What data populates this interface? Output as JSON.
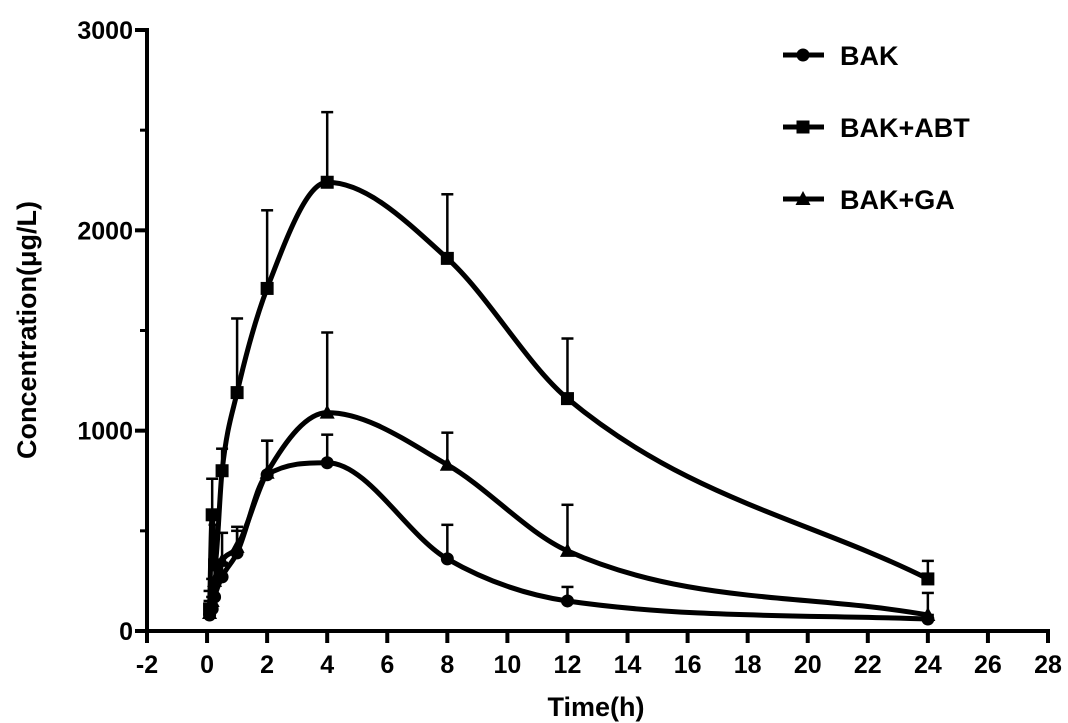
{
  "chart_data": {
    "type": "line",
    "title": "",
    "xlabel": "Time(h)",
    "ylabel": "Concentration(μg/L)",
    "xlim": [
      -2,
      28
    ],
    "ylim": [
      0,
      3000
    ],
    "x_ticks": [
      -2,
      0,
      2,
      4,
      6,
      8,
      10,
      12,
      14,
      16,
      18,
      20,
      22,
      24,
      26,
      28
    ],
    "y_ticks": [
      0,
      1000,
      2000,
      3000
    ],
    "grid": false,
    "legend_position": "top-right",
    "x": [
      0.083,
      0.17,
      0.25,
      0.5,
      1,
      2,
      4,
      8,
      12,
      24
    ],
    "series": [
      {
        "name": "BAK",
        "marker": "circle",
        "values": [
          80,
          110,
          170,
          270,
          390,
          780,
          840,
          360,
          150,
          60
        ],
        "error": [
          40,
          60,
          60,
          70,
          110,
          170,
          140,
          170,
          70,
          20
        ]
      },
      {
        "name": "BAK+ABT",
        "marker": "square",
        "values": [
          110,
          580,
          330,
          800,
          1190,
          1710,
          2240,
          1860,
          1160,
          260
        ],
        "error": [
          90,
          180,
          200,
          110,
          370,
          390,
          350,
          320,
          300,
          90
        ]
      },
      {
        "name": "BAK+GA",
        "marker": "triangle",
        "values": [
          90,
          150,
          250,
          350,
          420,
          790,
          1090,
          830,
          400,
          80
        ],
        "error": [
          60,
          110,
          90,
          140,
          100,
          160,
          400,
          160,
          230,
          110
        ]
      }
    ]
  }
}
